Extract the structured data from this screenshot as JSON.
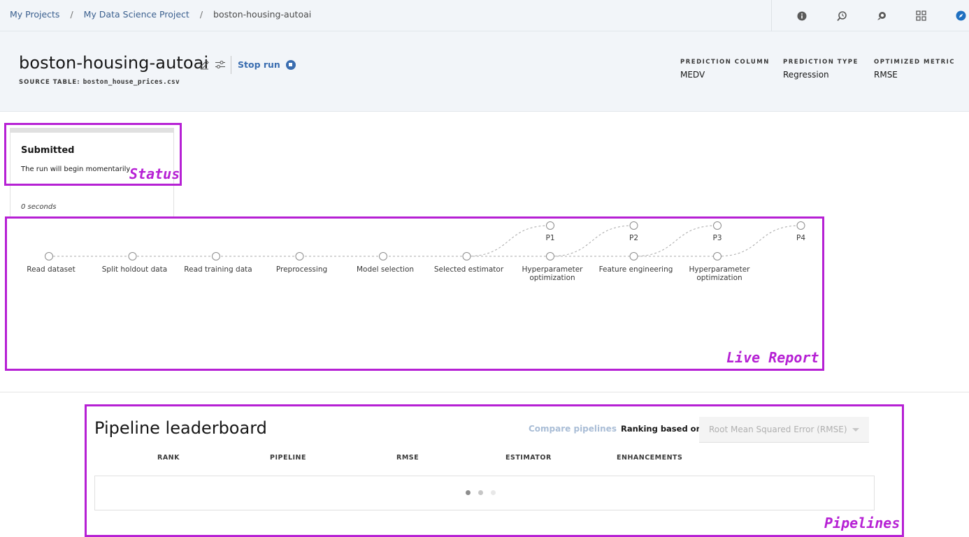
{
  "breadcrumb": {
    "items": [
      "My Projects",
      "My Data Science Project"
    ],
    "current": "boston-housing-autoai",
    "separator": "/"
  },
  "toolbar_icons": [
    "info-icon",
    "history-icon",
    "chat-icon",
    "grid-icon",
    "compass-icon"
  ],
  "header": {
    "title": "boston-housing-autoai",
    "stop_label": "Stop run",
    "source_label": "SOURCE TABLE:",
    "source_value": "boston_house_prices.csv",
    "meta": [
      {
        "label": "PREDICTION COLUMN",
        "value": "MEDV"
      },
      {
        "label": "PREDICTION TYPE",
        "value": "Regression"
      },
      {
        "label": "OPTIMIZED METRIC",
        "value": "RMSE"
      }
    ]
  },
  "status": {
    "title": "Submitted",
    "message": "The run will begin momentarily",
    "elapsed": "0 seconds"
  },
  "progress_map": {
    "steps": [
      "Read dataset",
      "Split holdout data",
      "Read training data",
      "Preprocessing",
      "Model selection",
      "Selected estimator",
      "Hyperparameter\noptimization",
      "Feature engineering",
      "Hyperparameter\noptimization"
    ],
    "pipelines": [
      "P1",
      "P2",
      "P3",
      "P4"
    ]
  },
  "leaderboard": {
    "title": "Pipeline leaderboard",
    "compare_label": "Compare pipelines",
    "ranking_label": "Ranking based on:",
    "ranking_value": "Root Mean Squared Error (RMSE)",
    "columns": [
      "RANK",
      "PIPELINE",
      "RMSE",
      "ESTIMATOR",
      "ENHANCEMENTS"
    ]
  },
  "annotations": {
    "status": "Status",
    "live_report": "Live Report",
    "pipelines": "Pipelines"
  },
  "colors": {
    "accent": "#3a6db0",
    "annotation": "#b620d4",
    "header_bg": "#f2f5f9"
  }
}
